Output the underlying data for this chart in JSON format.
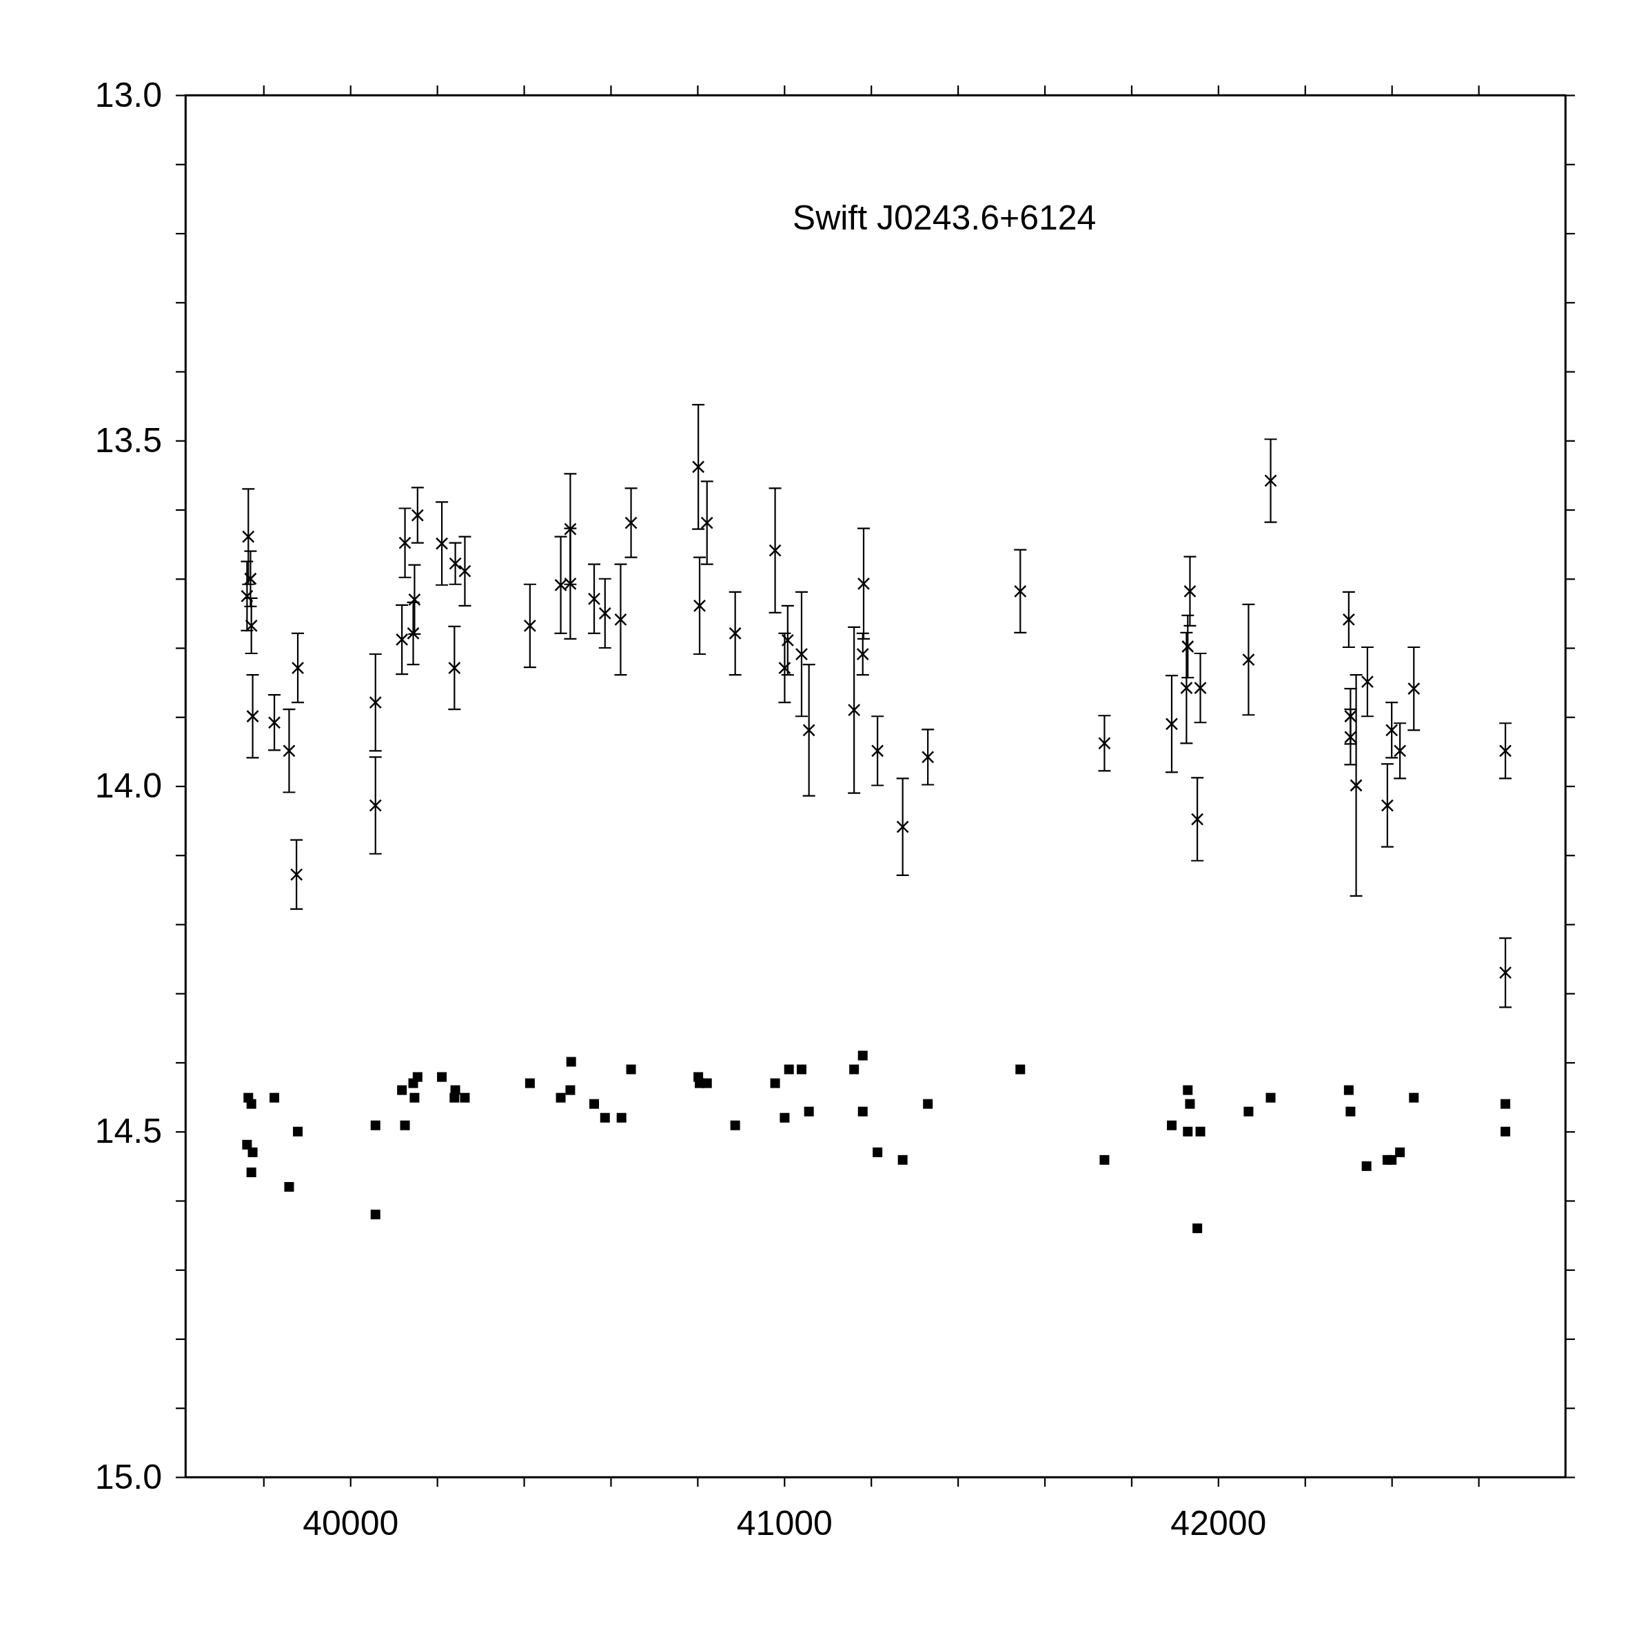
{
  "chart_data": {
    "type": "scatter",
    "title": "Swift J0243.6+6124",
    "xlim": [
      39620,
      42800
    ],
    "ylim": [
      15.0,
      13.0
    ],
    "xticks": [
      {
        "value": 39800,
        "label": null
      },
      {
        "value": 40000,
        "label": "40000"
      },
      {
        "value": 40200,
        "label": null
      },
      {
        "value": 40400,
        "label": null
      },
      {
        "value": 40600,
        "label": null
      },
      {
        "value": 40800,
        "label": null
      },
      {
        "value": 41000,
        "label": "41000"
      },
      {
        "value": 41200,
        "label": null
      },
      {
        "value": 41400,
        "label": null
      },
      {
        "value": 41600,
        "label": null
      },
      {
        "value": 41800,
        "label": null
      },
      {
        "value": 42000,
        "label": "42000"
      },
      {
        "value": 42200,
        "label": null
      },
      {
        "value": 42400,
        "label": null
      },
      {
        "value": 42600,
        "label": null
      }
    ],
    "yticks": [
      {
        "value": 13.0,
        "label": "13.0"
      },
      {
        "value": 13.1,
        "label": null
      },
      {
        "value": 13.2,
        "label": null
      },
      {
        "value": 13.3,
        "label": null
      },
      {
        "value": 13.4,
        "label": null
      },
      {
        "value": 13.5,
        "label": "13.5"
      },
      {
        "value": 13.6,
        "label": null
      },
      {
        "value": 13.7,
        "label": null
      },
      {
        "value": 13.8,
        "label": null
      },
      {
        "value": 13.9,
        "label": null
      },
      {
        "value": 14.0,
        "label": "14.0"
      },
      {
        "value": 14.1,
        "label": null
      },
      {
        "value": 14.2,
        "label": null
      },
      {
        "value": 14.3,
        "label": null
      },
      {
        "value": 14.4,
        "label": null
      },
      {
        "value": 14.5,
        "label": "14.5"
      },
      {
        "value": 14.6,
        "label": null
      },
      {
        "value": 14.7,
        "label": null
      },
      {
        "value": 14.8,
        "label": null
      },
      {
        "value": 14.9,
        "label": null
      },
      {
        "value": 15.0,
        "label": "15.0"
      }
    ],
    "series": [
      {
        "type": "scatter",
        "marker": "cross",
        "color": "#000000",
        "x": [
          39765,
          39762,
          39770,
          39772,
          39775,
          39825,
          39859,
          39879,
          39876,
          40058,
          40058,
          40119,
          40126,
          40145,
          40148,
          40155,
          40211,
          40240,
          40242,
          40264,
          40414,
          40485,
          40507,
          40507,
          40562,
          40587,
          40623,
          40647,
          40802,
          40805,
          40822,
          40887,
          40979,
          41001,
          41008,
          41040,
          41057,
          41161,
          41181,
          41183,
          41215,
          41273,
          41331,
          41544,
          41738,
          41893,
          41927,
          41930,
          41935,
          41952,
          41959,
          42070,
          42121,
          42301,
          42305,
          42305,
          42318,
          42344,
          42390,
          42400,
          42419,
          42451,
          42662,
          42662
        ],
        "values": [
          13.639,
          13.725,
          13.7,
          13.768,
          13.899,
          13.908,
          13.949,
          13.829,
          14.128,
          13.879,
          14.028,
          13.788,
          13.648,
          13.779,
          13.73,
          13.608,
          13.649,
          13.829,
          13.678,
          13.689,
          13.768,
          13.709,
          13.628,
          13.707,
          13.729,
          13.75,
          13.759,
          13.619,
          13.538,
          13.739,
          13.619,
          13.779,
          13.659,
          13.829,
          13.789,
          13.809,
          13.919,
          13.89,
          13.809,
          13.707,
          13.949,
          14.059,
          13.958,
          13.718,
          13.938,
          13.91,
          13.858,
          13.798,
          13.718,
          14.048,
          13.858,
          13.817,
          13.558,
          13.759,
          13.899,
          13.929,
          13.999,
          13.849,
          14.028,
          13.919,
          13.949,
          13.859,
          13.949,
          14.27
        ],
        "errors": [
          0.069,
          0.05,
          0.04,
          0.04,
          0.06,
          0.04,
          0.06,
          0.05,
          0.05,
          0.07,
          0.07,
          0.05,
          0.05,
          0.045,
          0.05,
          0.04,
          0.06,
          0.06,
          0.03,
          0.05,
          0.06,
          0.07,
          0.08,
          0.08,
          0.05,
          0.05,
          0.08,
          0.05,
          0.09,
          0.07,
          0.06,
          0.06,
          0.09,
          0.05,
          0.05,
          0.09,
          0.095,
          0.12,
          0.03,
          0.08,
          0.05,
          0.07,
          0.04,
          0.06,
          0.04,
          0.07,
          0.08,
          0.045,
          0.05,
          0.06,
          0.05,
          0.08,
          0.06,
          0.04,
          0.04,
          0.04,
          0.16,
          0.05,
          0.06,
          0.04,
          0.04,
          0.06,
          0.04,
          0.05
        ]
      },
      {
        "type": "scatter",
        "marker": "square",
        "color": "#000000",
        "x": [
          39765,
          39772,
          39762,
          39775,
          39772,
          39825,
          39859,
          39879,
          40058,
          40058,
          40119,
          40126,
          40145,
          40148,
          40155,
          40211,
          40240,
          40242,
          40264,
          40414,
          40485,
          40507,
          40509,
          40562,
          40587,
          40625,
          40647,
          40802,
          40805,
          40822,
          40887,
          40979,
          41001,
          41011,
          41040,
          41057,
          41161,
          41181,
          41181,
          41215,
          41273,
          41331,
          41544,
          41738,
          41893,
          41930,
          41935,
          41930,
          41952,
          41959,
          42070,
          42121,
          42301,
          42305,
          42342,
          42390,
          42400,
          42419,
          42451,
          42662,
          42662
        ],
        "values": [
          14.451,
          14.46,
          14.519,
          14.53,
          14.559,
          14.451,
          14.58,
          14.5,
          14.491,
          14.62,
          14.44,
          14.491,
          14.43,
          14.451,
          14.421,
          14.421,
          14.451,
          14.44,
          14.451,
          14.43,
          14.451,
          14.44,
          14.399,
          14.46,
          14.48,
          14.48,
          14.41,
          14.421,
          14.43,
          14.43,
          14.491,
          14.43,
          14.48,
          14.41,
          14.41,
          14.471,
          14.41,
          14.39,
          14.471,
          14.53,
          14.541,
          14.46,
          14.41,
          14.541,
          14.491,
          14.44,
          14.46,
          14.5,
          14.64,
          14.5,
          14.471,
          14.451,
          14.44,
          14.471,
          14.55,
          14.541,
          14.541,
          14.53,
          14.451,
          14.46,
          14.5
        ]
      }
    ]
  }
}
